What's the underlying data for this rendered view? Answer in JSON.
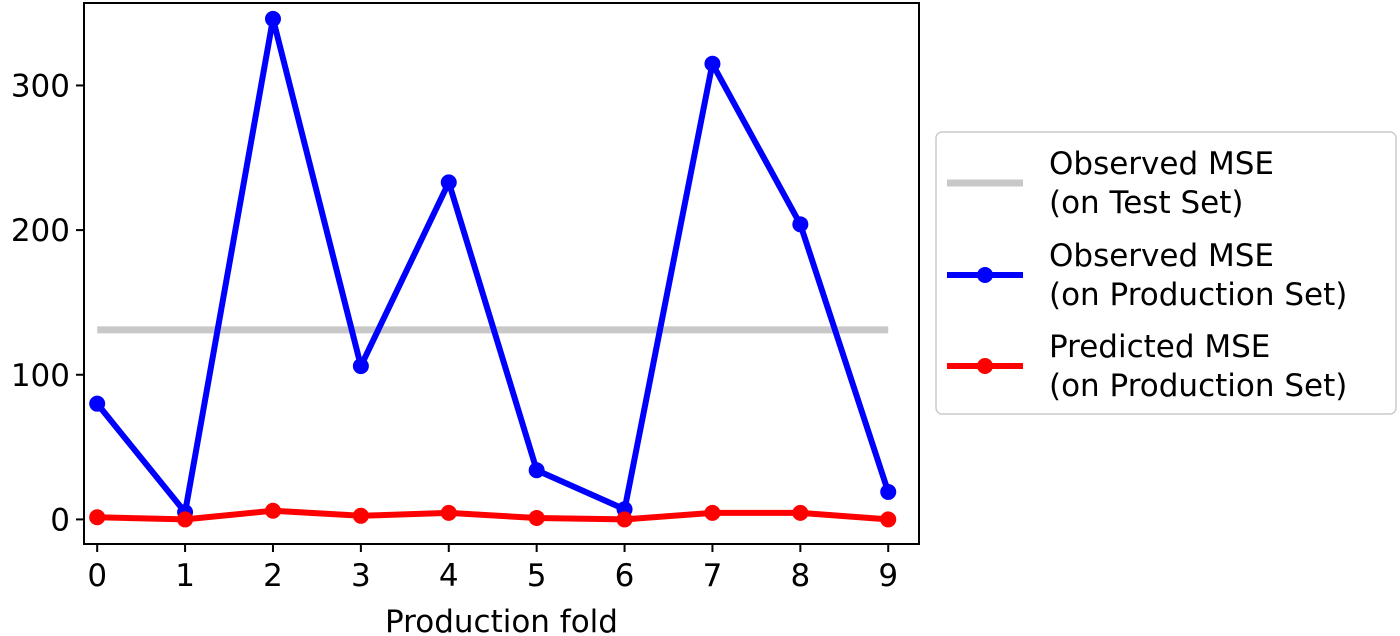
{
  "chart_data": {
    "type": "line",
    "xlabel": "Production fold",
    "ylabel": "",
    "x": [
      0,
      1,
      2,
      3,
      4,
      5,
      6,
      7,
      8,
      9
    ],
    "xlim": [
      -0.15,
      9.35
    ],
    "ylim": [
      -17,
      357
    ],
    "xticks": [
      0,
      1,
      2,
      3,
      4,
      5,
      6,
      7,
      8,
      9
    ],
    "yticks": [
      0,
      100,
      200,
      300
    ],
    "grid": false,
    "legend_position": "outside-right",
    "series": [
      {
        "name": "Observed MSE\n(on Test Set)",
        "color": "#c8c8c8",
        "marker": false,
        "values": [
          131,
          131,
          131,
          131,
          131,
          131,
          131,
          131,
          131,
          131
        ]
      },
      {
        "name": "Observed MSE\n(on Production Set)",
        "color": "#0000ff",
        "marker": true,
        "values": [
          80,
          5,
          346,
          106,
          233,
          34,
          7,
          315,
          204,
          19
        ]
      },
      {
        "name": "Predicted MSE\n(on Production Set)",
        "color": "#ff0000",
        "marker": true,
        "values": [
          1.5,
          0,
          6,
          2.5,
          4.5,
          1,
          0,
          4.5,
          4.5,
          0
        ]
      }
    ]
  }
}
